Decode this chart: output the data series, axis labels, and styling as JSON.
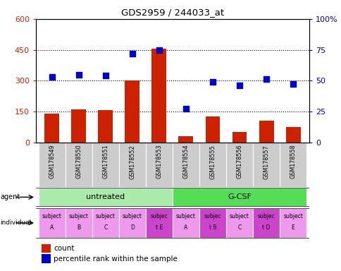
{
  "title": "GDS2959 / 244033_at",
  "samples": [
    "GSM178549",
    "GSM178550",
    "GSM178551",
    "GSM178552",
    "GSM178553",
    "GSM178554",
    "GSM178555",
    "GSM178556",
    "GSM178557",
    "GSM178558"
  ],
  "counts": [
    140,
    160,
    158,
    300,
    455,
    30,
    125,
    50,
    105,
    75
  ],
  "percentile_ranks": [
    53,
    55,
    54,
    72,
    75,
    27,
    49,
    46,
    51,
    47
  ],
  "ylim_left": [
    0,
    600
  ],
  "ylim_right": [
    0,
    100
  ],
  "yticks_left": [
    0,
    150,
    300,
    450,
    600
  ],
  "yticks_right": [
    0,
    25,
    50,
    75,
    100
  ],
  "ytick_labels_right": [
    "0",
    "25",
    "50",
    "75",
    "100%"
  ],
  "bar_color": "#cc2200",
  "dot_color": "#0000cc",
  "agent_groups": [
    {
      "label": "untreated",
      "start": 0,
      "end": 5,
      "color": "#aaeaaa"
    },
    {
      "label": "G-CSF",
      "start": 5,
      "end": 10,
      "color": "#55dd55"
    }
  ],
  "individuals": [
    [
      "subject",
      "A"
    ],
    [
      "subject",
      "B"
    ],
    [
      "subject",
      "C"
    ],
    [
      "subject",
      "D"
    ],
    [
      "subjec",
      "t E"
    ],
    [
      "subject",
      "A"
    ],
    [
      "subjec",
      "t B"
    ],
    [
      "subject",
      "C"
    ],
    [
      "subjec",
      "t D"
    ],
    [
      "subject",
      "E"
    ]
  ],
  "individual_highlights": [
    4,
    6,
    8
  ],
  "individual_bg_normal": "#ee99ee",
  "individual_bg_highlight": "#cc44cc",
  "tick_label_bg": "#cccccc",
  "legend_count_color": "#cc2200",
  "legend_dot_color": "#0000cc",
  "legend_count_label": "count",
  "legend_dot_label": "percentile rank within the sample",
  "agent_label": "agent",
  "individual_label": "individual"
}
